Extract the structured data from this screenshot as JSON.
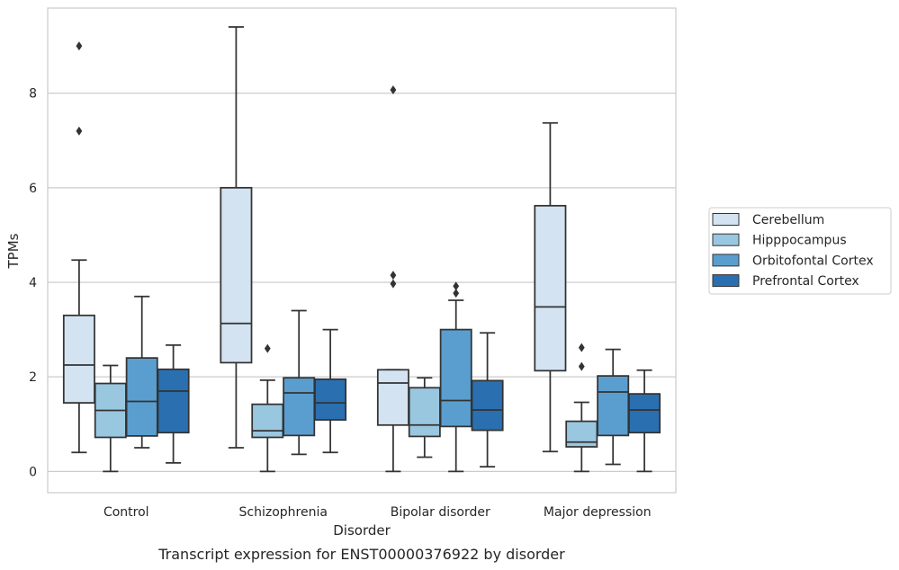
{
  "chart_data": {
    "type": "boxplot",
    "caption": "Transcript expression for ENST00000376922 by disorder",
    "xlabel": "Disorder",
    "ylabel": "TPMs",
    "ylim": [
      -0.45,
      9.8
    ],
    "yticks": [
      0,
      2,
      4,
      6,
      8
    ],
    "grid": true,
    "legend_position": "right",
    "categories": [
      "Control",
      "Schizophrenia",
      "Bipolar disorder",
      "Major depression"
    ],
    "series": [
      {
        "name": "Cerebellum",
        "color": "#d3e3f1",
        "boxes": [
          {
            "whislo": 0.4,
            "q1": 1.45,
            "med": 2.25,
            "q3": 3.3,
            "whishi": 4.47,
            "fliers": [
              7.2,
              9.0
            ]
          },
          {
            "whislo": 0.5,
            "q1": 2.3,
            "med": 3.13,
            "q3": 6.0,
            "whishi": 9.4,
            "fliers": []
          },
          {
            "whislo": 0.0,
            "q1": 0.98,
            "med": 1.87,
            "q3": 2.15,
            "whishi": 2.15,
            "fliers": [
              3.97,
              4.15,
              8.07
            ]
          },
          {
            "whislo": 0.42,
            "q1": 2.13,
            "med": 3.48,
            "q3": 5.62,
            "whishi": 7.37,
            "fliers": []
          }
        ]
      },
      {
        "name": "Hipppocampus",
        "color": "#9ac7e0",
        "boxes": [
          {
            "whislo": 0.0,
            "q1": 0.72,
            "med": 1.29,
            "q3": 1.86,
            "whishi": 2.24,
            "fliers": []
          },
          {
            "whislo": 0.0,
            "q1": 0.72,
            "med": 0.86,
            "q3": 1.42,
            "whishi": 1.93,
            "fliers": [
              2.6
            ]
          },
          {
            "whislo": 0.3,
            "q1": 0.74,
            "med": 0.98,
            "q3": 1.77,
            "whishi": 1.98,
            "fliers": []
          },
          {
            "whislo": 0.0,
            "q1": 0.52,
            "med": 0.62,
            "q3": 1.06,
            "whishi": 1.46,
            "fliers": [
              2.22,
              2.62
            ]
          }
        ]
      },
      {
        "name": "Orbitofontal Cortex",
        "color": "#5a9ecf",
        "boxes": [
          {
            "whislo": 0.5,
            "q1": 0.75,
            "med": 1.48,
            "q3": 2.4,
            "whishi": 3.7,
            "fliers": []
          },
          {
            "whislo": 0.36,
            "q1": 0.76,
            "med": 1.66,
            "q3": 1.98,
            "whishi": 3.4,
            "fliers": []
          },
          {
            "whislo": 0.0,
            "q1": 0.95,
            "med": 1.5,
            "q3": 3.0,
            "whishi": 3.62,
            "fliers": [
              3.77,
              3.92
            ]
          },
          {
            "whislo": 0.15,
            "q1": 0.76,
            "med": 1.68,
            "q3": 2.02,
            "whishi": 2.58,
            "fliers": []
          }
        ]
      },
      {
        "name": "Prefrontal Cortex",
        "color": "#2a6fb0",
        "boxes": [
          {
            "whislo": 0.18,
            "q1": 0.82,
            "med": 1.7,
            "q3": 2.16,
            "whishi": 2.67,
            "fliers": []
          },
          {
            "whislo": 0.4,
            "q1": 1.09,
            "med": 1.45,
            "q3": 1.95,
            "whishi": 3.0,
            "fliers": []
          },
          {
            "whislo": 0.1,
            "q1": 0.87,
            "med": 1.3,
            "q3": 1.92,
            "whishi": 2.93,
            "fliers": []
          },
          {
            "whislo": 0.0,
            "q1": 0.82,
            "med": 1.3,
            "q3": 1.64,
            "whishi": 2.14,
            "fliers": []
          }
        ]
      }
    ]
  }
}
